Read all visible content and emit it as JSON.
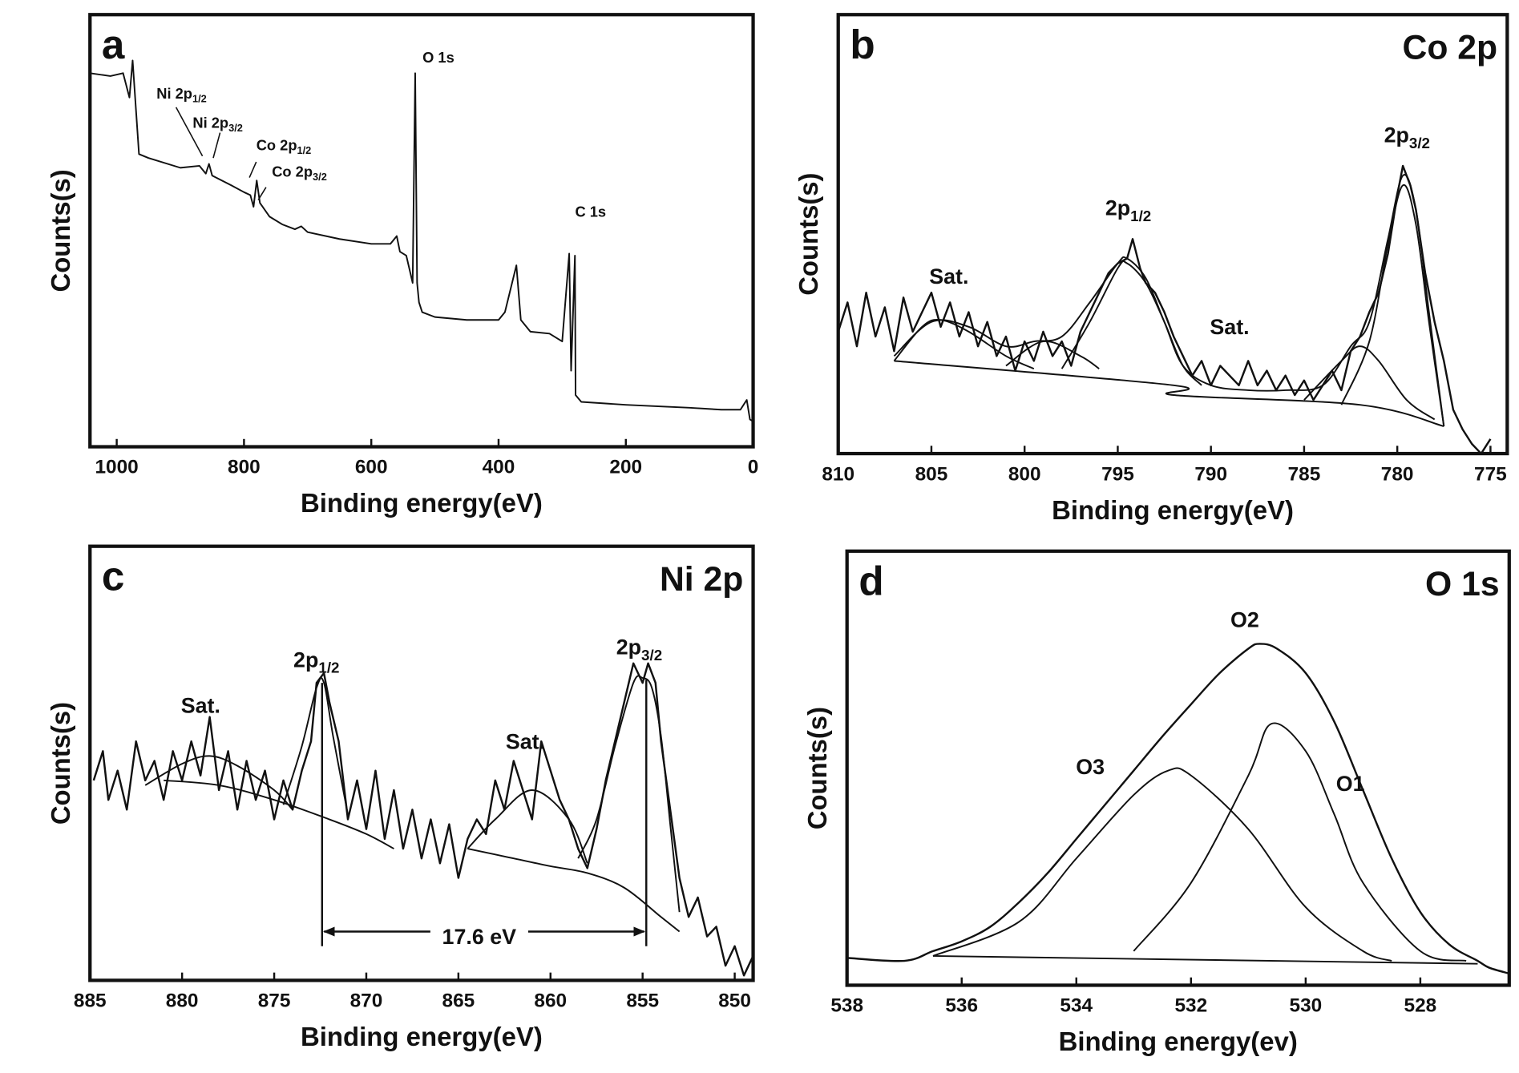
{
  "chart_data": [
    {
      "type": "line",
      "panel": "a",
      "x_label": "Binding energy(eV)",
      "y_label": "Counts(s)",
      "xlim": [
        1042,
        0
      ],
      "xticks": [
        1000,
        800,
        600,
        400,
        200,
        0
      ],
      "ylim": [
        0,
        443
      ],
      "annotations": [
        {
          "text": "O 1s"
        },
        {
          "text": "C 1s"
        },
        {
          "text": "Ni 2p",
          "sub": "1/2"
        },
        {
          "text": "Ni 2p",
          "sub": "3/2"
        },
        {
          "text": "Co 2p",
          "sub": "1/2"
        },
        {
          "text": "Co 2p",
          "sub": "3/2"
        }
      ],
      "series": [
        {
          "color": "#111",
          "x": [
            1042,
            1010,
            990,
            980,
            975,
            970,
            965,
            950,
            900,
            870,
            860,
            855,
            850,
            820,
            800,
            790,
            785,
            780,
            775,
            760,
            740,
            720,
            710,
            700,
            650,
            600,
            570,
            560,
            555,
            545,
            535,
            531,
            528,
            525,
            520,
            500,
            450,
            400,
            390,
            372,
            365,
            350,
            320,
            300,
            289,
            286,
            280,
            279,
            270,
            200,
            100,
            50,
            20,
            10,
            5,
            0
          ],
          "values": [
            383,
            380,
            383,
            358,
            396,
            348,
            300,
            296,
            286,
            288,
            280,
            290,
            278,
            268,
            261,
            258,
            246,
            273,
            250,
            236,
            228,
            223,
            226,
            220,
            213,
            208,
            208,
            216,
            200,
            196,
            168,
            383,
            168,
            148,
            138,
            133,
            130,
            130,
            138,
            186,
            130,
            118,
            116,
            108,
            198,
            78,
            196,
            53,
            46,
            43,
            40,
            38,
            38,
            48,
            28,
            26
          ]
        }
      ]
    },
    {
      "type": "line",
      "panel": "b",
      "title": "Co 2p",
      "x_label": "Binding energy(eV)",
      "y_label": "Counts(s)",
      "xlim": [
        810,
        774.1
      ],
      "xticks": [
        810,
        805,
        800,
        795,
        790,
        785,
        780,
        775
      ],
      "ylim": [
        0,
        450
      ],
      "annotations": [
        {
          "text": "Sat."
        },
        {
          "text": "2p",
          "sub": "1/2"
        },
        {
          "text": "Sat."
        },
        {
          "text": "2p",
          "sub": "3/2"
        }
      ],
      "series": [
        {
          "color": "#111",
          "x": [
            810,
            809.5,
            809,
            808.5,
            808,
            807.5,
            807,
            806.5,
            806,
            805.5,
            805,
            804.5,
            804,
            803.5,
            803,
            802.5,
            802,
            801.5,
            801,
            800.5,
            800,
            799.5,
            799,
            798.5,
            798,
            797.5,
            797,
            796.5,
            796,
            795.5,
            795,
            794.5,
            794.2,
            793.8,
            793.5,
            793,
            792.5,
            792,
            791.5,
            791,
            790.5,
            790,
            789.5,
            789,
            788.5,
            788,
            787.5,
            787,
            786.5,
            786,
            785.5,
            785,
            784.5,
            784,
            783.5,
            783,
            782.5,
            782,
            781.5,
            781,
            780.5,
            780,
            779.7,
            779.3,
            779,
            778.5,
            778,
            777.5,
            777,
            776.5,
            776,
            775.5,
            775
          ],
          "values": [
            125,
            155,
            110,
            165,
            120,
            150,
            105,
            160,
            125,
            145,
            165,
            130,
            155,
            120,
            145,
            110,
            135,
            100,
            120,
            85,
            115,
            95,
            125,
            100,
            115,
            90,
            125,
            145,
            165,
            185,
            195,
            200,
            220,
            190,
            175,
            165,
            145,
            120,
            100,
            80,
            95,
            70,
            90,
            80,
            70,
            95,
            70,
            85,
            65,
            80,
            60,
            75,
            55,
            70,
            85,
            65,
            105,
            120,
            145,
            165,
            205,
            265,
            295,
            275,
            250,
            185,
            135,
            95,
            45,
            25,
            10,
            0,
            15
          ]
        },
        {
          "color": "#111",
          "smooth": true,
          "x": [
            807,
            792,
            792,
            782,
            777.5
          ],
          "values": [
            95,
            70,
            60,
            50,
            28
          ]
        },
        {
          "color": "#111",
          "smooth": true,
          "x": [
            807,
            805.5,
            804.5,
            803,
            801,
            799.5
          ],
          "values": [
            95,
            130,
            137,
            125,
            100,
            87
          ]
        },
        {
          "color": "#111",
          "smooth": true,
          "x": [
            801,
            799,
            797,
            796
          ],
          "values": [
            90,
            115,
            100,
            87
          ]
        },
        {
          "color": "#111",
          "smooth": true,
          "x": [
            798,
            796.5,
            795,
            794.5,
            793.5,
            792.5,
            791.5,
            790.5
          ],
          "values": [
            87,
            135,
            190,
            195,
            175,
            135,
            90,
            70
          ]
        },
        {
          "color": "#111",
          "smooth": true,
          "x": [
            785,
            783,
            782,
            781,
            779.5,
            778
          ],
          "values": [
            55,
            95,
            110,
            95,
            55,
            35
          ]
        },
        {
          "color": "#111",
          "smooth": true,
          "x": [
            783,
            781.5,
            780.5,
            779.7,
            779,
            778.3,
            777.5
          ],
          "values": [
            50,
            115,
            215,
            275,
            235,
            135,
            28
          ]
        },
        {
          "color": "#111",
          "smooth": true,
          "x": [
            807,
            805,
            803,
            801,
            799.5,
            798,
            796.5,
            795,
            794.5,
            793.5,
            792.5,
            791.5,
            790,
            788,
            786,
            784,
            782.5,
            781.5,
            780.5,
            779.7,
            779,
            778.3,
            777.5
          ],
          "values": [
            100,
            135,
            130,
            110,
            115,
            120,
            155,
            195,
            200,
            180,
            135,
            90,
            70,
            65,
            65,
            70,
            110,
            135,
            220,
            285,
            250,
            145,
            28
          ]
        }
      ]
    },
    {
      "type": "line",
      "panel": "c",
      "title": "Ni 2p",
      "x_label": "Binding energy(eV)",
      "y_label": "Counts(s)",
      "xlim": [
        885,
        849
      ],
      "xticks": [
        885,
        880,
        875,
        870,
        865,
        860,
        855,
        850
      ],
      "ylim": [
        0,
        445
      ],
      "annotations": [
        {
          "text": "Sat."
        },
        {
          "text": "2p",
          "sub": "1/2"
        },
        {
          "text": "Sat."
        },
        {
          "text": "2p",
          "sub": "3/2"
        },
        {
          "text": "17.6 eV"
        }
      ],
      "vlines": [
        872.4,
        854.8
      ],
      "series": [
        {
          "color": "#111",
          "x": [
            884.8,
            884.3,
            884,
            883.5,
            883,
            882.5,
            882,
            881.5,
            881,
            880.5,
            880,
            879.5,
            879,
            878.5,
            878,
            877.5,
            877,
            876.5,
            876,
            875.5,
            875,
            874.5,
            874,
            873.5,
            873,
            872.7,
            872.3,
            872,
            871.5,
            871,
            870.5,
            870,
            869.5,
            869,
            868.5,
            868,
            867.5,
            867,
            866.5,
            866,
            865.5,
            865,
            864.5,
            864,
            863.5,
            863,
            862.5,
            862,
            861.5,
            861,
            860.5,
            860,
            859.5,
            859,
            858.5,
            858,
            857.5,
            857,
            856.5,
            856,
            855.5,
            855,
            854.7,
            854.3,
            854,
            853.5,
            853,
            852.5,
            852,
            851.5,
            851,
            850.5,
            850,
            849.5,
            849
          ],
          "values": [
            205,
            235,
            185,
            215,
            175,
            245,
            205,
            225,
            185,
            235,
            205,
            245,
            210,
            270,
            195,
            235,
            175,
            225,
            185,
            215,
            165,
            205,
            175,
            215,
            245,
            305,
            315,
            285,
            245,
            165,
            205,
            155,
            215,
            145,
            195,
            135,
            175,
            125,
            165,
            120,
            160,
            105,
            145,
            165,
            150,
            205,
            175,
            225,
            195,
            165,
            245,
            215,
            185,
            165,
            135,
            115,
            155,
            205,
            245,
            285,
            325,
            305,
            325,
            305,
            245,
            175,
            105,
            65,
            85,
            45,
            55,
            15,
            35,
            5,
            25
          ]
        },
        {
          "color": "#111",
          "smooth": true,
          "x": [
            881,
            878,
            875,
            872,
            870,
            868.5
          ],
          "values": [
            205,
            200,
            185,
            165,
            150,
            135
          ]
        },
        {
          "color": "#111",
          "smooth": true,
          "x": [
            864.5,
            862,
            860,
            858,
            856,
            854,
            853
          ],
          "values": [
            135,
            125,
            117,
            110,
            95,
            65,
            50
          ]
        },
        {
          "color": "#111",
          "smooth": true,
          "x": [
            882,
            880,
            878.5,
            877,
            875,
            874
          ],
          "values": [
            200,
            222,
            230,
            220,
            195,
            175
          ]
        },
        {
          "color": "#111",
          "smooth": true,
          "x": [
            874.5,
            873.5,
            872.7,
            872.3,
            871.8,
            871
          ],
          "values": [
            180,
            240,
            300,
            305,
            250,
            170
          ]
        },
        {
          "color": "#111",
          "smooth": true,
          "x": [
            864.5,
            863,
            861,
            859,
            858
          ],
          "values": [
            135,
            165,
            195,
            165,
            120
          ]
        },
        {
          "color": "#111",
          "smooth": true,
          "x": [
            858.5,
            857.5,
            856.5,
            855.5,
            855,
            854.5,
            854,
            853.5,
            853
          ],
          "values": [
            125,
            165,
            240,
            305,
            310,
            300,
            250,
            160,
            70
          ]
        }
      ]
    },
    {
      "type": "line",
      "panel": "d",
      "title": "O 1s",
      "x_label": "Binding energy(ev)",
      "y_label": "Counts(s)",
      "xlim": [
        538,
        526.45
      ],
      "xticks": [
        538,
        536,
        534,
        532,
        530,
        528
      ],
      "ylim": [
        0,
        445
      ],
      "annotations": [
        {
          "text": "O2"
        },
        {
          "text": "O3"
        },
        {
          "text": "O1"
        }
      ],
      "series": [
        {
          "color": "#111",
          "smooth": true,
          "x": [
            538,
            537,
            536.5,
            536,
            535.5,
            535,
            534.5,
            534,
            533.5,
            533,
            532.5,
            532,
            531.5,
            531,
            530.8,
            530.5,
            530,
            529.5,
            529,
            528.5,
            528,
            527.5,
            527,
            526.8,
            526.45
          ],
          "values": [
            28,
            25,
            35,
            45,
            60,
            85,
            115,
            150,
            185,
            220,
            255,
            288,
            320,
            345,
            350,
            345,
            320,
            270,
            200,
            130,
            75,
            42,
            25,
            18,
            12
          ]
        },
        {
          "color": "#111",
          "smooth": true,
          "x": [
            536.5,
            527
          ],
          "values": [
            30,
            22
          ]
        },
        {
          "color": "#111",
          "smooth": true,
          "x": [
            536.5,
            535,
            534,
            533,
            532.4,
            532,
            531,
            530,
            529,
            528.5
          ],
          "values": [
            30,
            65,
            130,
            195,
            220,
            215,
            160,
            80,
            35,
            25
          ]
        },
        {
          "color": "#111",
          "smooth": true,
          "x": [
            533,
            532,
            531,
            530.6,
            530,
            529.5,
            529,
            528,
            527.2
          ],
          "values": [
            35,
            105,
            215,
            268,
            240,
            175,
            105,
            35,
            25
          ]
        }
      ]
    }
  ]
}
